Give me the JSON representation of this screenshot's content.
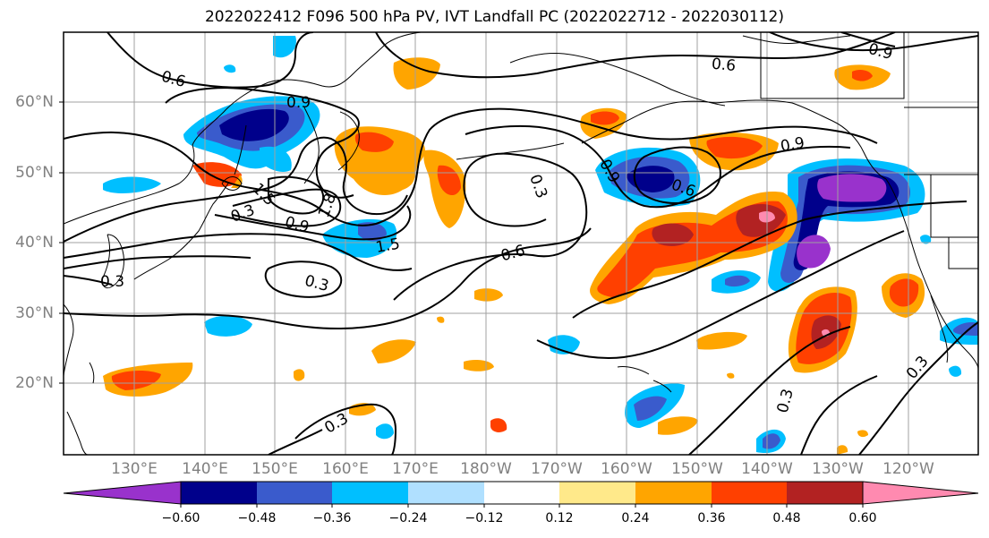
{
  "title": "2022022412 F096 500 hPa PV, IVT Landfall PC (2022022712 - 2022030112)",
  "lat_labels": [
    "60°N",
    "50°N",
    "40°N",
    "30°N",
    "20°N"
  ],
  "lon_labels": [
    "130°E",
    "140°E",
    "150°E",
    "160°E",
    "170°E",
    "180°W",
    "170°W",
    "160°W",
    "150°W",
    "140°W",
    "130°W",
    "120°W"
  ],
  "contour_labels": [
    "0.6",
    "0.9",
    "0.6",
    "0.9",
    "0.9",
    "0.6",
    "0.3",
    "0.9",
    "1.5",
    "1.8",
    "0.9",
    "1.5",
    "0.6",
    "0.3",
    "0.3",
    "0.3",
    "0.3",
    "0.3",
    "0.3"
  ],
  "colorbar": {
    "ticks": [
      "−0.60",
      "−0.48",
      "−0.36",
      "−0.24",
      "−0.12",
      "0.12",
      "0.24",
      "0.36",
      "0.48",
      "0.60"
    ],
    "colors": [
      "#9932cc",
      "#00008b",
      "#3a5bcc",
      "#00bfff",
      "#b0e0ff",
      "#ffffff",
      "#ffe98a",
      "#ffa500",
      "#ff4000",
      "#b22222",
      "#ff8ab0"
    ]
  }
}
